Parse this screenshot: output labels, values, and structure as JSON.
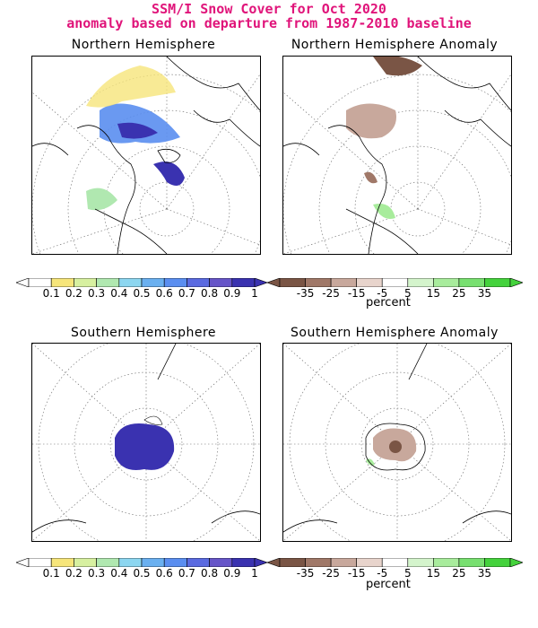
{
  "title_line1": "SSM/I Snow Cover for Oct 2020",
  "title_line2": "anomaly based on departure from 1987-2010 baseline",
  "panels": {
    "nh": "Northern Hemisphere",
    "nh_anom": "Northern Hemisphere Anomaly",
    "sh": "Southern Hemisphere",
    "sh_anom": "Southern Hemisphere Anomaly"
  },
  "cover_legend": {
    "labels": [
      "0.1",
      "0.2",
      "0.3",
      "0.4",
      "0.5",
      "0.6",
      "0.7",
      "0.8",
      "0.9",
      "1"
    ],
    "colors": [
      "#ffffff",
      "#f6e57a",
      "#d7f0a0",
      "#b0e8b0",
      "#8cd6f0",
      "#6ab0f0",
      "#5a8ef0",
      "#5a6ae0",
      "#6655c8",
      "#3a32b0"
    ]
  },
  "anomaly_legend": {
    "labels": [
      "-35",
      "-25",
      "-15",
      "-5",
      "5",
      "15",
      "25",
      "35"
    ],
    "unit": "percent",
    "colors": [
      "#7a5545",
      "#a07868",
      "#c8a89c",
      "#e8d4cc",
      "#ffffff",
      "#d4f4cc",
      "#a8ec9c",
      "#78e070",
      "#44d23c"
    ]
  },
  "colors": {
    "title": "#e0147a",
    "ocean": "#ffffff",
    "coast": "#000000",
    "grid": "#555555"
  }
}
